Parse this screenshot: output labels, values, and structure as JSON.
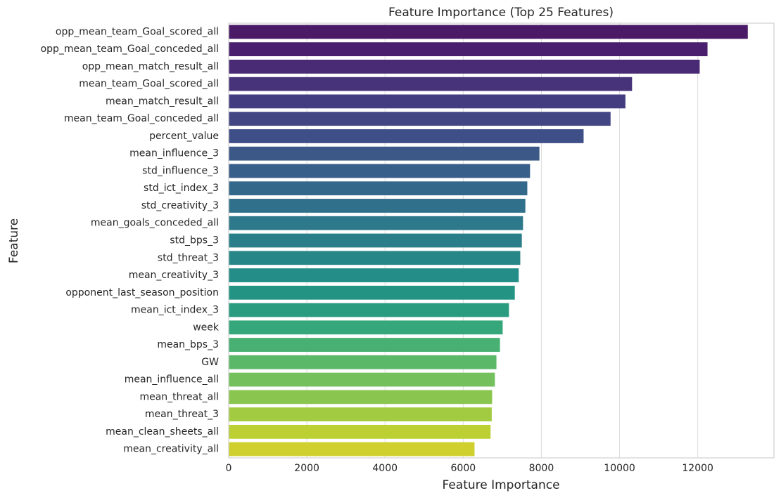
{
  "chart_data": {
    "type": "barh",
    "title": "Feature Importance (Top 25 Features)",
    "x_label": "Feature Importance",
    "y_label": "Feature",
    "categories": [
      "opp_mean_team_Goal_scored_all",
      "opp_mean_team_Goal_conceded_all",
      "opp_mean_match_result_all",
      "mean_team_Goal_scored_all",
      "mean_match_result_all",
      "mean_team_Goal_conceded_all",
      "percent_value",
      "mean_influence_3",
      "std_influence_3",
      "std_ict_index_3",
      "std_creativity_3",
      "mean_goals_conceded_all",
      "std_bps_3",
      "std_threat_3",
      "mean_creativity_3",
      "opponent_last_season_position",
      "mean_ict_index_3",
      "week",
      "mean_bps_3",
      "GW",
      "mean_influence_all",
      "mean_threat_all",
      "mean_threat_3",
      "mean_clean_sheets_all",
      "mean_creativity_all"
    ],
    "values": [
      13280,
      12250,
      12050,
      10320,
      10150,
      9770,
      9080,
      7950,
      7710,
      7640,
      7590,
      7530,
      7500,
      7460,
      7420,
      7320,
      7170,
      7010,
      6940,
      6850,
      6810,
      6740,
      6730,
      6700,
      6290
    ],
    "colors": [
      "#4a1a66",
      "#4a1f6e",
      "#492a74",
      "#473379",
      "#443c80",
      "#424683",
      "#3e4e86",
      "#3b5887",
      "#375f89",
      "#34688a",
      "#30708a",
      "#2d788a",
      "#2a7e89",
      "#278688",
      "#248d87",
      "#239484",
      "#299c80",
      "#36a67b",
      "#47b072",
      "#5bb868",
      "#73c05c",
      "#8ac64f",
      "#a2cb41",
      "#bccf33",
      "#cfd02d"
    ],
    "xlim": [
      0,
      13950
    ],
    "xticks": [
      0,
      2000,
      4000,
      6000,
      8000,
      10000,
      12000
    ],
    "grid": true
  }
}
